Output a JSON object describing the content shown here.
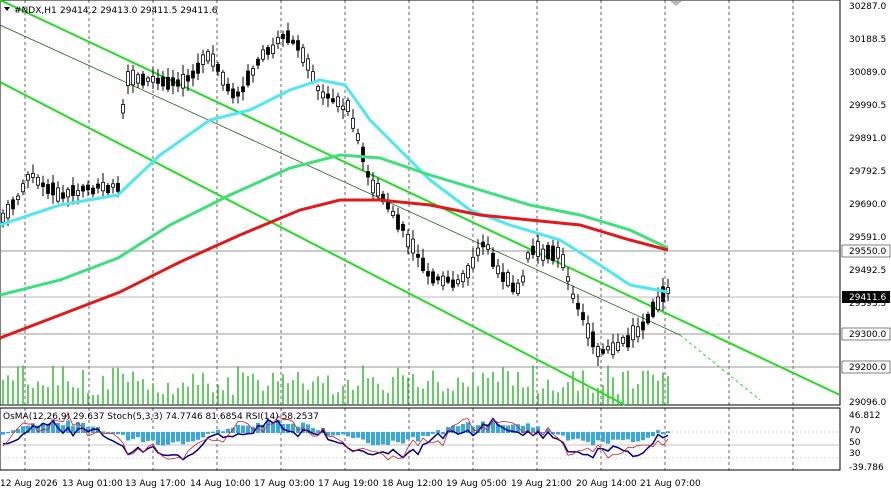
{
  "header": {
    "symbol": "#NDX,H1",
    "ohlc": "29414.2 29413.0 29411.5 29411.6"
  },
  "indicator_header": "OsMA(12,26,9) 29.637  Stoch(5,3,3) 74.7746 81.6854  RSI(14) 58.2537",
  "price_axis": [
    "30287.0",
    "30188.5",
    "30089.0",
    "29990.5",
    "29891.0",
    "29792.5",
    "29690.0",
    "29591.0",
    "29492.5",
    "29393.5",
    "29294.0",
    "29195.5",
    "29096.0"
  ],
  "price_tags": [
    {
      "label": "29550.0",
      "bg": "#ffffff",
      "fg": "#000000"
    },
    {
      "label": "29411.6",
      "bg": "#000000",
      "fg": "#ffffff"
    },
    {
      "label": "29300.0",
      "bg": "#ffffff",
      "fg": "#000000"
    },
    {
      "label": "29200.0",
      "bg": "#ffffff",
      "fg": "#000000"
    }
  ],
  "indicator_axis": [
    "46.812",
    "70",
    "50",
    "30",
    "-39.786"
  ],
  "time_axis": [
    "12 Aug 2026",
    "13 Aug 01:00",
    "13 Aug 17:00",
    "14 Aug 10:00",
    "17 Aug 03:00",
    "17 Aug 19:00",
    "18 Aug 12:00",
    "19 Aug 05:00",
    "19 Aug 21:00",
    "20 Aug 14:00",
    "21 Aug 07:00"
  ],
  "colors": {
    "ma_fast": "#4de8f0",
    "ma_mid": "#3ee07a",
    "ma_slow": "#e01a1a",
    "channel": "#22dd22",
    "histogram": "#3aa8e0",
    "stoch_main": "#00008b",
    "rsi": "#cc2020"
  }
}
